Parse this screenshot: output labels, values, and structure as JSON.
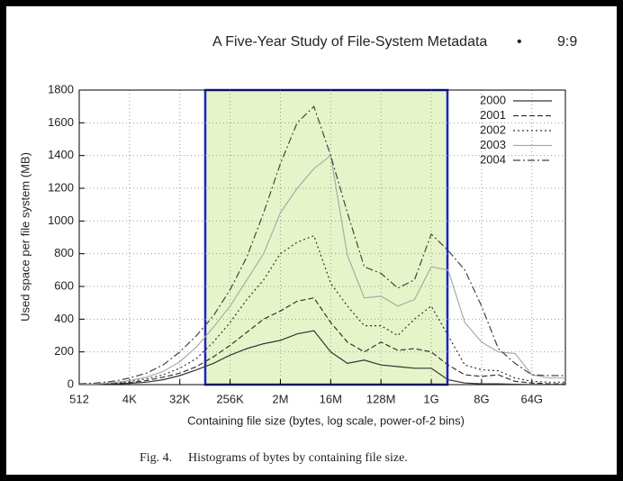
{
  "page_header": {
    "title": "A Five-Year Study of File-System Metadata",
    "separator": "•",
    "page": "9:9"
  },
  "caption": {
    "label": "Fig. 4.",
    "text": "Histograms of bytes by containing file size."
  },
  "chart_data": {
    "type": "line",
    "xlabel": "Containing file size (bytes, log scale, power-of-2 bins)",
    "ylabel": "Used space per file system (MB)",
    "xscale": "log2",
    "grid": true,
    "legend": "top-right",
    "xlim": [
      512,
      274877906944
    ],
    "xticks": [
      512,
      {
        "value": 4096,
        "label": "4K"
      },
      {
        "value": 32768,
        "label": "32K"
      },
      {
        "value": 262144,
        "label": "256K"
      },
      {
        "value": 2097152,
        "label": "2M"
      },
      {
        "value": 16777216,
        "label": "16M"
      },
      {
        "value": 134217728,
        "label": "128M"
      },
      {
        "value": 1073741824,
        "label": "1G"
      },
      {
        "value": 8589934592,
        "label": "8G"
      },
      {
        "value": 68719476736,
        "label": "64G"
      }
    ],
    "ylim": [
      0,
      1800
    ],
    "yticks": [
      0,
      200,
      400,
      600,
      800,
      1000,
      1200,
      1400,
      1600,
      1800
    ],
    "x": [
      512,
      1024,
      2048,
      4096,
      8192,
      16384,
      32768,
      65536,
      131072,
      262144,
      524288,
      1048576,
      2097152,
      4194304,
      8388608,
      16777216,
      33554432,
      67108864,
      134217728,
      268435456,
      536870912,
      1073741824,
      2147483648,
      4294967296,
      8589934592,
      17179869184,
      34359738368,
      68719476736,
      137438953472,
      274877906944
    ],
    "series": [
      {
        "name": "2000",
        "color": "#333333",
        "dash": "none",
        "values": [
          1,
          2,
          4,
          8,
          15,
          30,
          55,
          90,
          130,
          180,
          220,
          250,
          270,
          310,
          330,
          200,
          130,
          150,
          120,
          110,
          100,
          100,
          30,
          10,
          5,
          5,
          2,
          1,
          1,
          1
        ]
      },
      {
        "name": "2001",
        "color": "#333333",
        "dash": "6,3",
        "values": [
          1,
          3,
          6,
          12,
          25,
          45,
          70,
          110,
          170,
          240,
          320,
          400,
          450,
          510,
          530,
          380,
          260,
          200,
          260,
          210,
          220,
          200,
          120,
          60,
          50,
          60,
          20,
          10,
          5,
          5
        ]
      },
      {
        "name": "2002",
        "color": "#333333",
        "dash": "2,3",
        "values": [
          2,
          4,
          8,
          18,
          35,
          60,
          100,
          160,
          260,
          380,
          520,
          640,
          800,
          870,
          910,
          620,
          480,
          360,
          360,
          300,
          400,
          480,
          300,
          120,
          90,
          85,
          40,
          20,
          15,
          15
        ]
      },
      {
        "name": "2003",
        "color": "#aaaaaa",
        "dash": "none",
        "values": [
          3,
          5,
          12,
          25,
          45,
          80,
          140,
          230,
          350,
          480,
          640,
          800,
          1050,
          1200,
          1320,
          1400,
          790,
          530,
          540,
          480,
          520,
          720,
          700,
          380,
          260,
          200,
          190,
          60,
          40,
          40
        ]
      },
      {
        "name": "2004",
        "color": "#444444",
        "dash": "8,3,2,3",
        "values": [
          5,
          10,
          20,
          40,
          70,
          120,
          200,
          300,
          420,
          580,
          780,
          1050,
          1350,
          1600,
          1700,
          1400,
          1050,
          720,
          680,
          590,
          640,
          920,
          820,
          700,
          480,
          220,
          130,
          60,
          55,
          55
        ]
      }
    ]
  }
}
